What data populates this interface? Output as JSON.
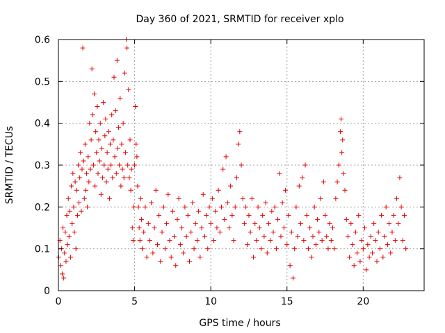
{
  "chart_data": {
    "type": "scatter",
    "title": "Day 360 of 2021, SRMTID for receiver xplo",
    "xlabel": "GPS time / hours",
    "ylabel": "SRMTID / TECUs",
    "xlim": [
      0,
      24
    ],
    "ylim": [
      0,
      0.6
    ],
    "xticks": [
      0,
      5,
      10,
      15,
      20
    ],
    "yticks": [
      0,
      0.1,
      0.2,
      0.3,
      0.4,
      0.5,
      0.6
    ],
    "xtick_labels": [
      "0",
      "5",
      "10",
      "15",
      "20"
    ],
    "ytick_labels": [
      "0",
      "0.1",
      "0.2",
      "0.3",
      "0.4",
      "0.5",
      "0.6"
    ],
    "grid": true,
    "marker": "+",
    "marker_color": "#e00000",
    "series": [
      {
        "name": "SRMTID",
        "points": [
          [
            0.02,
            0.08
          ],
          [
            0.1,
            0.12
          ],
          [
            0.15,
            0.06
          ],
          [
            0.2,
            0.1
          ],
          [
            0.25,
            0.04
          ],
          [
            0.3,
            0.15
          ],
          [
            0.35,
            0.03
          ],
          [
            0.4,
            0.09
          ],
          [
            0.45,
            0.14
          ],
          [
            0.5,
            0.07
          ],
          [
            0.55,
            0.18
          ],
          [
            0.6,
            0.11
          ],
          [
            0.65,
            0.22
          ],
          [
            0.7,
            0.13
          ],
          [
            0.75,
            0.19
          ],
          [
            0.8,
            0.08
          ],
          [
            0.85,
            0.25
          ],
          [
            0.9,
            0.16
          ],
          [
            0.95,
            0.28
          ],
          [
            1.0,
            0.2
          ],
          [
            1.05,
            0.14
          ],
          [
            1.1,
            0.26
          ],
          [
            1.15,
            0.1
          ],
          [
            1.2,
            0.24
          ],
          [
            1.25,
            0.18
          ],
          [
            1.3,
            0.3
          ],
          [
            1.35,
            0.21
          ],
          [
            1.4,
            0.27
          ],
          [
            1.45,
            0.33
          ],
          [
            1.5,
            0.19
          ],
          [
            1.55,
            0.29
          ],
          [
            1.6,
            0.58
          ],
          [
            1.65,
            0.31
          ],
          [
            1.7,
            0.22
          ],
          [
            1.75,
            0.35
          ],
          [
            1.8,
            0.24
          ],
          [
            1.85,
            0.28
          ],
          [
            1.9,
            0.2
          ],
          [
            1.95,
            0.32
          ],
          [
            2.0,
            0.26
          ],
          [
            2.05,
            0.4
          ],
          [
            2.1,
            0.29
          ],
          [
            2.15,
            0.36
          ],
          [
            2.2,
            0.53
          ],
          [
            2.25,
            0.42
          ],
          [
            2.3,
            0.3
          ],
          [
            2.35,
            0.47
          ],
          [
            2.4,
            0.25
          ],
          [
            2.45,
            0.38
          ],
          [
            2.5,
            0.33
          ],
          [
            2.55,
            0.44
          ],
          [
            2.6,
            0.28
          ],
          [
            2.65,
            0.36
          ],
          [
            2.7,
            0.31
          ],
          [
            2.75,
            0.4
          ],
          [
            2.8,
            0.23
          ],
          [
            2.85,
            0.34
          ],
          [
            2.9,
            0.27
          ],
          [
            2.95,
            0.45
          ],
          [
            3.0,
            0.3
          ],
          [
            3.05,
            0.37
          ],
          [
            3.1,
            0.41
          ],
          [
            3.15,
            0.26
          ],
          [
            3.2,
            0.33
          ],
          [
            3.25,
            0.29
          ],
          [
            3.3,
            0.38
          ],
          [
            3.35,
            0.22
          ],
          [
            3.4,
            0.35
          ],
          [
            3.45,
            0.3
          ],
          [
            3.5,
            0.42
          ],
          [
            3.55,
            0.27
          ],
          [
            3.6,
            0.36
          ],
          [
            3.65,
            0.51
          ],
          [
            3.7,
            0.32
          ],
          [
            3.75,
            0.43
          ],
          [
            3.8,
            0.28
          ],
          [
            3.85,
            0.55
          ],
          [
            3.9,
            0.34
          ],
          [
            3.95,
            0.39
          ],
          [
            4.0,
            0.3
          ],
          [
            4.05,
            0.46
          ],
          [
            4.1,
            0.25
          ],
          [
            4.15,
            0.35
          ],
          [
            4.2,
            0.29
          ],
          [
            4.25,
            0.4
          ],
          [
            4.3,
            0.27
          ],
          [
            4.35,
            0.52
          ],
          [
            4.4,
            0.33
          ],
          [
            4.45,
            0.6
          ],
          [
            4.5,
            0.58
          ],
          [
            4.55,
            0.3
          ],
          [
            4.6,
            0.48
          ],
          [
            4.65,
            0.27
          ],
          [
            4.7,
            0.36
          ],
          [
            4.75,
            0.24
          ],
          [
            4.8,
            0.29
          ],
          [
            4.85,
            0.15
          ],
          [
            4.9,
            0.12
          ],
          [
            4.95,
            0.2
          ],
          [
            5.0,
            0.3
          ],
          [
            5.05,
            0.44
          ],
          [
            5.1,
            0.35
          ],
          [
            5.15,
            0.32
          ],
          [
            5.2,
            0.25
          ],
          [
            5.25,
            0.2
          ],
          [
            5.3,
            0.15
          ],
          [
            5.35,
            0.12
          ],
          [
            5.4,
            0.22
          ],
          [
            5.45,
            0.17
          ],
          [
            5.5,
            0.1
          ],
          [
            5.6,
            0.14
          ],
          [
            5.7,
            0.2
          ],
          [
            5.8,
            0.08
          ],
          [
            5.9,
            0.16
          ],
          [
            6.0,
            0.12
          ],
          [
            6.1,
            0.21
          ],
          [
            6.2,
            0.09
          ],
          [
            6.3,
            0.15
          ],
          [
            6.4,
            0.24
          ],
          [
            6.5,
            0.11
          ],
          [
            6.6,
            0.18
          ],
          [
            6.7,
            0.07
          ],
          [
            6.8,
            0.14
          ],
          [
            6.9,
            0.2
          ],
          [
            7.0,
            0.1
          ],
          [
            7.1,
            0.16
          ],
          [
            7.2,
            0.23
          ],
          [
            7.3,
            0.12
          ],
          [
            7.4,
            0.08
          ],
          [
            7.5,
            0.19
          ],
          [
            7.6,
            0.13
          ],
          [
            7.7,
            0.06
          ],
          [
            7.8,
            0.17
          ],
          [
            7.9,
            0.22
          ],
          [
            8.0,
            0.11
          ],
          [
            8.1,
            0.15
          ],
          [
            8.2,
            0.09
          ],
          [
            8.3,
            0.2
          ],
          [
            8.4,
            0.13
          ],
          [
            8.5,
            0.18
          ],
          [
            8.6,
            0.07
          ],
          [
            8.7,
            0.14
          ],
          [
            8.8,
            0.21
          ],
          [
            8.9,
            0.1
          ],
          [
            9.0,
            0.16
          ],
          [
            9.1,
            0.12
          ],
          [
            9.2,
            0.19
          ],
          [
            9.3,
            0.08
          ],
          [
            9.4,
            0.15
          ],
          [
            9.5,
            0.23
          ],
          [
            9.6,
            0.13
          ],
          [
            9.7,
            0.18
          ],
          [
            9.8,
            0.1
          ],
          [
            9.9,
            0.2
          ],
          [
            10.0,
            0.16
          ],
          [
            10.1,
            0.22
          ],
          [
            10.2,
            0.12
          ],
          [
            10.3,
            0.19
          ],
          [
            10.4,
            0.15
          ],
          [
            10.5,
            0.24
          ],
          [
            10.6,
            0.14
          ],
          [
            10.7,
            0.2
          ],
          [
            10.8,
            0.29
          ],
          [
            10.9,
            0.17
          ],
          [
            11.0,
            0.32
          ],
          [
            11.1,
            0.21
          ],
          [
            11.2,
            0.15
          ],
          [
            11.3,
            0.25
          ],
          [
            11.4,
            0.18
          ],
          [
            11.5,
            0.12
          ],
          [
            11.6,
            0.2
          ],
          [
            11.7,
            0.27
          ],
          [
            11.8,
            0.35
          ],
          [
            11.9,
            0.38
          ],
          [
            12.0,
            0.3
          ],
          [
            12.1,
            0.22
          ],
          [
            12.2,
            0.16
          ],
          [
            12.3,
            0.2
          ],
          [
            12.4,
            0.11
          ],
          [
            12.5,
            0.18
          ],
          [
            12.6,
            0.14
          ],
          [
            12.7,
            0.22
          ],
          [
            12.8,
            0.08
          ],
          [
            12.9,
            0.16
          ],
          [
            13.0,
            0.12
          ],
          [
            13.1,
            0.2
          ],
          [
            13.2,
            0.15
          ],
          [
            13.3,
            0.1
          ],
          [
            13.4,
            0.18
          ],
          [
            13.5,
            0.13
          ],
          [
            13.6,
            0.21
          ],
          [
            13.7,
            0.09
          ],
          [
            13.8,
            0.16
          ],
          [
            13.9,
            0.12
          ],
          [
            14.0,
            0.19
          ],
          [
            14.1,
            0.14
          ],
          [
            14.2,
            0.2
          ],
          [
            14.3,
            0.1
          ],
          [
            14.4,
            0.17
          ],
          [
            14.5,
            0.28
          ],
          [
            14.6,
            0.13
          ],
          [
            14.7,
            0.21
          ],
          [
            14.8,
            0.15
          ],
          [
            14.9,
            0.24
          ],
          [
            15.0,
            0.11
          ],
          [
            15.1,
            0.18
          ],
          [
            15.2,
            0.06
          ],
          [
            15.3,
            0.14
          ],
          [
            15.4,
            0.03
          ],
          [
            15.5,
            0.1
          ],
          [
            15.6,
            0.2
          ],
          [
            15.7,
            0.13
          ],
          [
            15.8,
            0.25
          ],
          [
            15.9,
            0.16
          ],
          [
            16.0,
            0.27
          ],
          [
            16.1,
            0.12
          ],
          [
            16.2,
            0.3
          ],
          [
            16.3,
            0.18
          ],
          [
            16.4,
            0.1
          ],
          [
            16.5,
            0.15
          ],
          [
            16.6,
            0.08
          ],
          [
            16.7,
            0.13
          ],
          [
            16.8,
            0.2
          ],
          [
            16.9,
            0.11
          ],
          [
            17.0,
            0.17
          ],
          [
            17.1,
            0.14
          ],
          [
            17.2,
            0.22
          ],
          [
            17.3,
            0.12
          ],
          [
            17.4,
            0.26
          ],
          [
            17.5,
            0.18
          ],
          [
            17.6,
            0.13
          ],
          [
            17.7,
            0.1
          ],
          [
            17.8,
            0.16
          ],
          [
            17.9,
            0.12
          ],
          [
            18.0,
            0.15
          ],
          [
            18.1,
            0.1
          ],
          [
            18.2,
            0.22
          ],
          [
            18.3,
            0.26
          ],
          [
            18.4,
            0.3
          ],
          [
            18.5,
            0.38
          ],
          [
            18.55,
            0.41
          ],
          [
            18.6,
            0.33
          ],
          [
            18.65,
            0.36
          ],
          [
            18.7,
            0.28
          ],
          [
            18.8,
            0.24
          ],
          [
            18.9,
            0.17
          ],
          [
            19.0,
            0.13
          ],
          [
            19.1,
            0.08
          ],
          [
            19.2,
            0.16
          ],
          [
            19.3,
            0.11
          ],
          [
            19.4,
            0.06
          ],
          [
            19.5,
            0.14
          ],
          [
            19.6,
            0.09
          ],
          [
            19.7,
            0.18
          ],
          [
            19.8,
            0.07
          ],
          [
            19.9,
            0.12
          ],
          [
            20.0,
            0.1
          ],
          [
            20.1,
            0.15
          ],
          [
            20.2,
            0.05
          ],
          [
            20.3,
            0.11
          ],
          [
            20.4,
            0.08
          ],
          [
            20.5,
            0.13
          ],
          [
            20.6,
            0.09
          ],
          [
            20.7,
            0.16
          ],
          [
            20.8,
            0.12
          ],
          [
            20.9,
            0.07
          ],
          [
            21.0,
            0.14
          ],
          [
            21.1,
            0.1
          ],
          [
            21.2,
            0.18
          ],
          [
            21.3,
            0.08
          ],
          [
            21.4,
            0.13
          ],
          [
            21.5,
            0.2
          ],
          [
            21.6,
            0.11
          ],
          [
            21.7,
            0.16
          ],
          [
            21.8,
            0.09
          ],
          [
            21.9,
            0.14
          ],
          [
            22.0,
            0.18
          ],
          [
            22.1,
            0.12
          ],
          [
            22.2,
            0.22
          ],
          [
            22.3,
            0.16
          ],
          [
            22.4,
            0.27
          ],
          [
            22.5,
            0.2
          ],
          [
            22.6,
            0.12
          ],
          [
            22.7,
            0.18
          ],
          [
            22.8,
            0.1
          ]
        ]
      }
    ]
  }
}
